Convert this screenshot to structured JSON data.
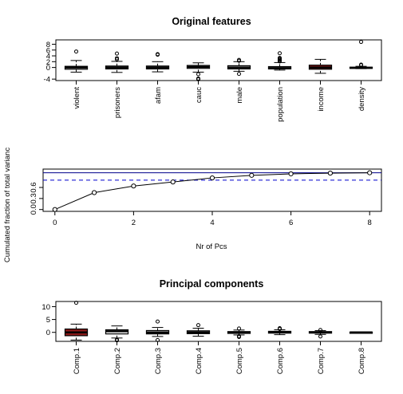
{
  "chart_data": [
    {
      "type": "boxplot",
      "title": "Original features",
      "xlabel": "",
      "ylabel": "",
      "ylim": [
        -4.5,
        9.5
      ],
      "yticks": [
        -4,
        0,
        2,
        4,
        6,
        8
      ],
      "box_color": "#ffffff",
      "categories": [
        "violent",
        "prisoners",
        "afam",
        "cauc",
        "male",
        "population",
        "income",
        "density"
      ],
      "boxes": [
        {
          "q1": -0.6,
          "median": 0.0,
          "q3": 0.4,
          "whisker_low": -1.6,
          "whisker_high": 2.4,
          "outliers": [
            5.5
          ],
          "fill": "#ffffff"
        },
        {
          "q1": -0.5,
          "median": 0.0,
          "q3": 0.5,
          "whisker_low": -1.7,
          "whisker_high": 2.1,
          "outliers": [
            2.8,
            3.2,
            4.8
          ],
          "fill": "#ffffff"
        },
        {
          "q1": -0.5,
          "median": 0.0,
          "q3": 0.5,
          "whisker_low": -1.5,
          "whisker_high": 2.0,
          "outliers": [
            4.4,
            4.6
          ],
          "fill": "#ffffff"
        },
        {
          "q1": -0.3,
          "median": 0.2,
          "q3": 0.7,
          "whisker_low": -1.6,
          "whisker_high": 1.6,
          "outliers": [
            -2.3,
            -3.8,
            -4.1
          ],
          "fill": "#ffffff"
        },
        {
          "q1": -0.5,
          "median": 0.0,
          "q3": 0.6,
          "whisker_low": -1.3,
          "whisker_high": 2.0,
          "outliers": [
            2.3,
            2.6,
            -2.2
          ],
          "fill": "#ffffff"
        },
        {
          "q1": -0.5,
          "median": -0.2,
          "q3": 0.3,
          "whisker_low": -0.9,
          "whisker_high": 1.7,
          "outliers": [
            2.1,
            2.4,
            2.7,
            3.0,
            3.3,
            4.9
          ],
          "fill": "#ffffff"
        },
        {
          "q1": -0.6,
          "median": 0.0,
          "q3": 0.8,
          "whisker_low": -2.0,
          "whisker_high": 2.8,
          "outliers": [],
          "fill": "#8b1a1a"
        },
        {
          "q1": -0.2,
          "median": -0.1,
          "q3": 0.1,
          "whisker_low": -0.4,
          "whisker_high": 0.4,
          "outliers": [
            0.8,
            1.0,
            8.8
          ],
          "fill": "#ffffff"
        }
      ]
    },
    {
      "type": "line",
      "title": "",
      "xlabel": "Nr of Pcs",
      "ylabel": "Cumulated fraction of total varianc",
      "xlim": [
        -0.3,
        8.3
      ],
      "ylim": [
        -0.05,
        1.1
      ],
      "xticks": [
        0,
        2,
        4,
        6,
        8
      ],
      "yticks": [
        0.0,
        0.3,
        0.6
      ],
      "ytick_labels": [
        "0.0",
        "0.3",
        "0.6"
      ],
      "x": [
        0,
        1,
        2,
        3,
        4,
        5,
        6,
        7,
        8
      ],
      "y": [
        0.0,
        0.46,
        0.64,
        0.75,
        0.86,
        0.93,
        0.97,
        0.99,
        1.0
      ],
      "hlines": [
        {
          "y": 1.0,
          "style": "solid",
          "color": "#00008b"
        },
        {
          "y": 0.8,
          "style": "dashed",
          "color": "#0000cd"
        }
      ]
    },
    {
      "type": "boxplot",
      "title": "Principal components",
      "xlabel": "",
      "ylabel": "",
      "ylim": [
        -3.5,
        12
      ],
      "yticks": [
        0,
        5,
        10
      ],
      "categories": [
        "Comp.1",
        "Comp.2",
        "Comp.3",
        "Comp.4",
        "Comp.5",
        "Comp.6",
        "Comp.7",
        "Comp.8"
      ],
      "boxes": [
        {
          "q1": -1.3,
          "median": 0.0,
          "q3": 1.3,
          "whisker_low": -3.0,
          "whisker_high": 3.2,
          "outliers": [
            11.5
          ],
          "fill": "#8b1a1a"
        },
        {
          "q1": -0.6,
          "median": 0.4,
          "q3": 1.0,
          "whisker_low": -2.2,
          "whisker_high": 2.5,
          "outliers": [
            -2.8,
            -3.1
          ],
          "fill": "#ffffff"
        },
        {
          "q1": -0.6,
          "median": 0.0,
          "q3": 0.7,
          "whisker_low": -1.6,
          "whisker_high": 1.9,
          "outliers": [
            4.2,
            -3.0
          ],
          "fill": "#ffffff"
        },
        {
          "q1": -0.5,
          "median": 0.0,
          "q3": 0.6,
          "whisker_low": -1.5,
          "whisker_high": 1.6,
          "outliers": [
            2.8
          ],
          "fill": "#ffffff"
        },
        {
          "q1": -0.4,
          "median": 0.0,
          "q3": 0.3,
          "whisker_low": -1.0,
          "whisker_high": 0.9,
          "outliers": [
            1.5,
            -1.5,
            -1.8
          ],
          "fill": "#ffffff"
        },
        {
          "q1": -0.3,
          "median": 0.0,
          "q3": 0.4,
          "whisker_low": -0.9,
          "whisker_high": 1.0,
          "outliers": [
            1.3,
            1.6
          ],
          "fill": "#ffffff"
        },
        {
          "q1": -0.3,
          "median": 0.0,
          "q3": 0.3,
          "whisker_low": -0.8,
          "whisker_high": 0.7,
          "outliers": [
            0.9,
            -1.6
          ],
          "fill": "#ffffff"
        },
        {
          "q1": -0.1,
          "median": 0.0,
          "q3": 0.1,
          "whisker_low": -0.2,
          "whisker_high": 0.2,
          "outliers": [],
          "fill": "#ffffff"
        }
      ]
    }
  ]
}
